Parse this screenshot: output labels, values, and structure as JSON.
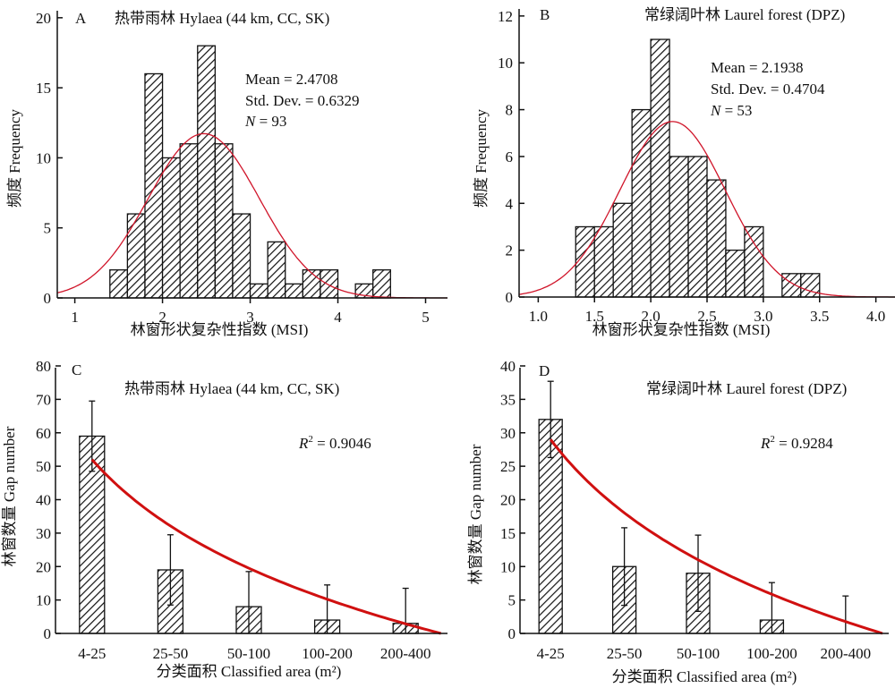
{
  "chart_data": [
    {
      "id": "A",
      "type": "bar",
      "subtype": "histogram",
      "panel_letter": "A",
      "title": "热带雨林 Hylaea (44 km, CC, SK)",
      "xlabel": "林窗形状复杂性指数 (MSI)",
      "ylabel": "频度 Frequency",
      "xlim": [
        0.8,
        5.25
      ],
      "ylim": [
        0,
        20.5
      ],
      "xticks": [
        1,
        2,
        3,
        4,
        5
      ],
      "xtick_labels": [
        "1",
        "2",
        "3",
        "4",
        "5"
      ],
      "yticks": [
        0,
        5,
        10,
        15,
        20
      ],
      "ytick_labels": [
        "0",
        "5",
        "10",
        "15",
        "20"
      ],
      "bin_start": 1.4,
      "bin_width": 0.2,
      "values": [
        2,
        6,
        16,
        10,
        11,
        18,
        11,
        6,
        1,
        4,
        1,
        2,
        2,
        0,
        1,
        2
      ],
      "normal_curve": {
        "mean": 2.4708,
        "sd": 0.6329,
        "n": 93,
        "color": "#d0152a"
      },
      "stats": {
        "mean_label": "Mean = 2.4708",
        "sd_label": "Std. Dev. = 0.6329",
        "n_italic": "N",
        "n_rest": " = 93"
      },
      "grid": false
    },
    {
      "id": "B",
      "type": "bar",
      "subtype": "histogram",
      "panel_letter": "B",
      "title": "常绿阔叶林  Laurel forest  (DPZ)",
      "xlabel": "林窗形状复杂性指数 (MSI)",
      "ylabel": "频度 Frequency",
      "xlim": [
        0.83,
        4.17
      ],
      "ylim": [
        0,
        12.3
      ],
      "xticks": [
        1.0,
        1.5,
        2.0,
        2.5,
        3.0,
        3.5,
        4.0
      ],
      "xtick_labels": [
        "1.0",
        "1.5",
        "2.0",
        "2.5",
        "3.0",
        "3.5",
        "4.0"
      ],
      "yticks": [
        0,
        2,
        4,
        6,
        8,
        10,
        12
      ],
      "ytick_labels": [
        "0",
        "2",
        "4",
        "6",
        "8",
        "10",
        "12"
      ],
      "bin_start": 1.333,
      "bin_width": 0.1667,
      "values": [
        3,
        3,
        4,
        8,
        11,
        6,
        6,
        5,
        2,
        3,
        0,
        1,
        1
      ],
      "normal_curve": {
        "mean": 2.1938,
        "sd": 0.4704,
        "n": 53,
        "color": "#d0152a"
      },
      "stats": {
        "mean_label": "Mean = 2.1938",
        "sd_label": "Std. Dev. = 0.4704",
        "n_italic": "N",
        "n_rest": " = 53"
      },
      "grid": false
    },
    {
      "id": "C",
      "type": "bar",
      "panel_letter": "C",
      "title": "热带雨林 Hylaea (44 km, CC, SK)",
      "xlabel": "分类面积 Classified area (m²)",
      "ylabel": "林窗数量 Gap number",
      "categories": [
        "4-25",
        "25-50",
        "50-100",
        "100-200",
        "200-400"
      ],
      "values": [
        59,
        19,
        8,
        4,
        3
      ],
      "error_upper": [
        69.5,
        29.5,
        18.5,
        14.5,
        13.5
      ],
      "error_lower": [
        48.5,
        8.5,
        0,
        0,
        0
      ],
      "ylim": [
        0,
        80
      ],
      "yticks": [
        0,
        10,
        20,
        30,
        40,
        50,
        60,
        70,
        80
      ],
      "ytick_labels": [
        "0",
        "10",
        "20",
        "30",
        "40",
        "50",
        "60",
        "70",
        "80"
      ],
      "trend": {
        "type": "fit",
        "start_value": 52,
        "end_value": 0,
        "end_position": 4.45,
        "color": "#d01010"
      },
      "r2_italic": "R",
      "r2_sup": "2",
      "r2_rest": " = 0.9046",
      "grid": false
    },
    {
      "id": "D",
      "type": "bar",
      "panel_letter": "D",
      "title": "常绿阔叶林 Laurel forest (DPZ)",
      "xlabel": "分类面积 Classified area (m²)",
      "ylabel": "林窗数量 Gap number",
      "categories": [
        "4-25",
        "25-50",
        "50-100",
        "100-200",
        "200-400"
      ],
      "values": [
        32,
        10,
        9,
        2,
        0
      ],
      "error_upper": [
        37.7,
        15.8,
        14.7,
        7.6,
        5.6
      ],
      "error_lower": [
        26.3,
        4.2,
        3.3,
        0,
        0
      ],
      "ylim": [
        0,
        40
      ],
      "yticks": [
        0,
        5,
        10,
        15,
        20,
        25,
        30,
        35,
        40
      ],
      "ytick_labels": [
        "0",
        "5",
        "10",
        "15",
        "20",
        "25",
        "30",
        "35",
        "40"
      ],
      "trend": {
        "type": "fit",
        "start_value": 29,
        "end_value": 0,
        "end_position": 4.5,
        "color": "#d01010"
      },
      "r2_italic": "R",
      "r2_sup": "2",
      "r2_rest": " = 0.9284",
      "grid": false
    }
  ]
}
